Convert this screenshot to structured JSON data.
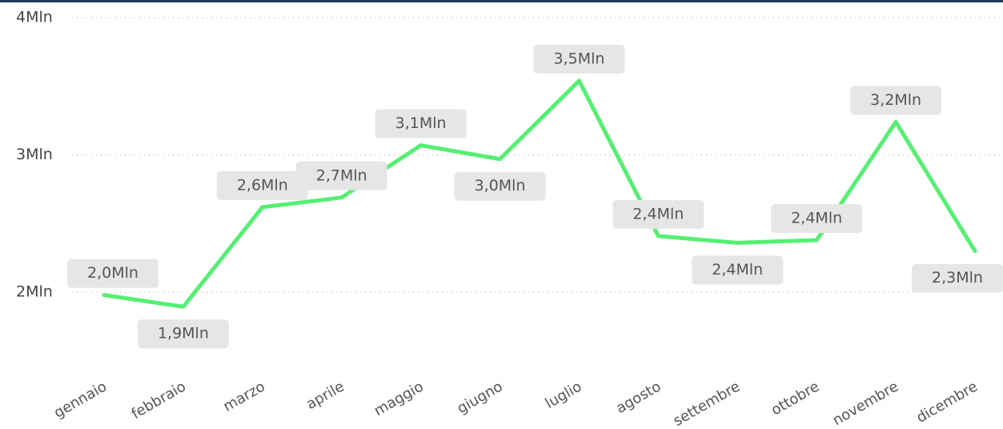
{
  "chart_data": {
    "type": "line",
    "categories": [
      "gennaio",
      "febbraio",
      "marzo",
      "aprile",
      "maggio",
      "giugno",
      "luglio",
      "agosto",
      "settembre",
      "ottobre",
      "novembre",
      "dicembre"
    ],
    "values": [
      1980000,
      1895000,
      2620000,
      2690000,
      3070000,
      2970000,
      3540000,
      2410000,
      2360000,
      2380000,
      3240000,
      2300000
    ],
    "value_labels": [
      "2,0Mln",
      "1,9Mln",
      "2,6Mln",
      "2,7Mln",
      "3,1Mln",
      "3,0Mln",
      "3,5Mln",
      "2,4Mln",
      "2,4Mln",
      "2,4Mln",
      "3,2Mln",
      "2,3Mln"
    ],
    "color": "#55ef72",
    "ylim": [
      1500000,
      4000000
    ],
    "yticks": [
      {
        "value": 2000000,
        "label": "2Mln"
      },
      {
        "value": 3000000,
        "label": "3Mln"
      },
      {
        "value": 4000000,
        "label": "4Mln"
      }
    ],
    "grid": true
  }
}
